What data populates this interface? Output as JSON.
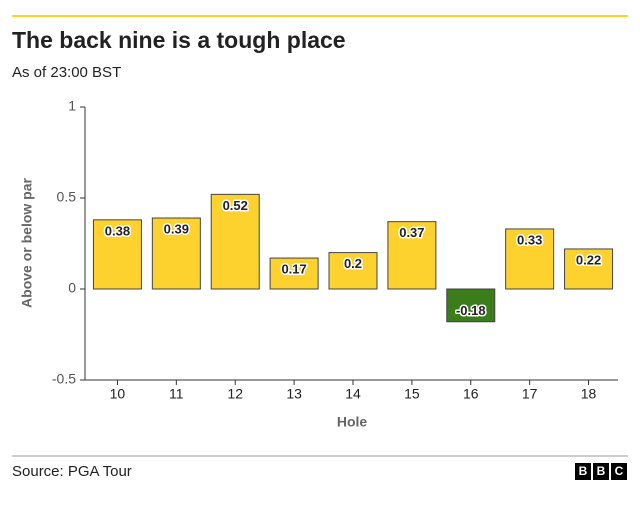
{
  "chart_data": {
    "type": "bar",
    "title": "The back nine is a tough place",
    "subtitle": "As of 23:00 BST",
    "x_label": "Hole",
    "y_label": "Above or below par",
    "categories": [
      "10",
      "11",
      "12",
      "13",
      "14",
      "15",
      "16",
      "17",
      "18"
    ],
    "values": [
      0.38,
      0.39,
      0.52,
      0.17,
      0.2,
      0.37,
      -0.18,
      0.33,
      0.22
    ],
    "color": "#fdd22f",
    "negative_color": "#3b7d1b",
    "ylim": [
      -0.5,
      1
    ],
    "yticks": [
      -0.5,
      0,
      0.5,
      1
    ],
    "grid": false,
    "source": "Source: PGA Tour",
    "logo": [
      "B",
      "B",
      "C"
    ]
  }
}
